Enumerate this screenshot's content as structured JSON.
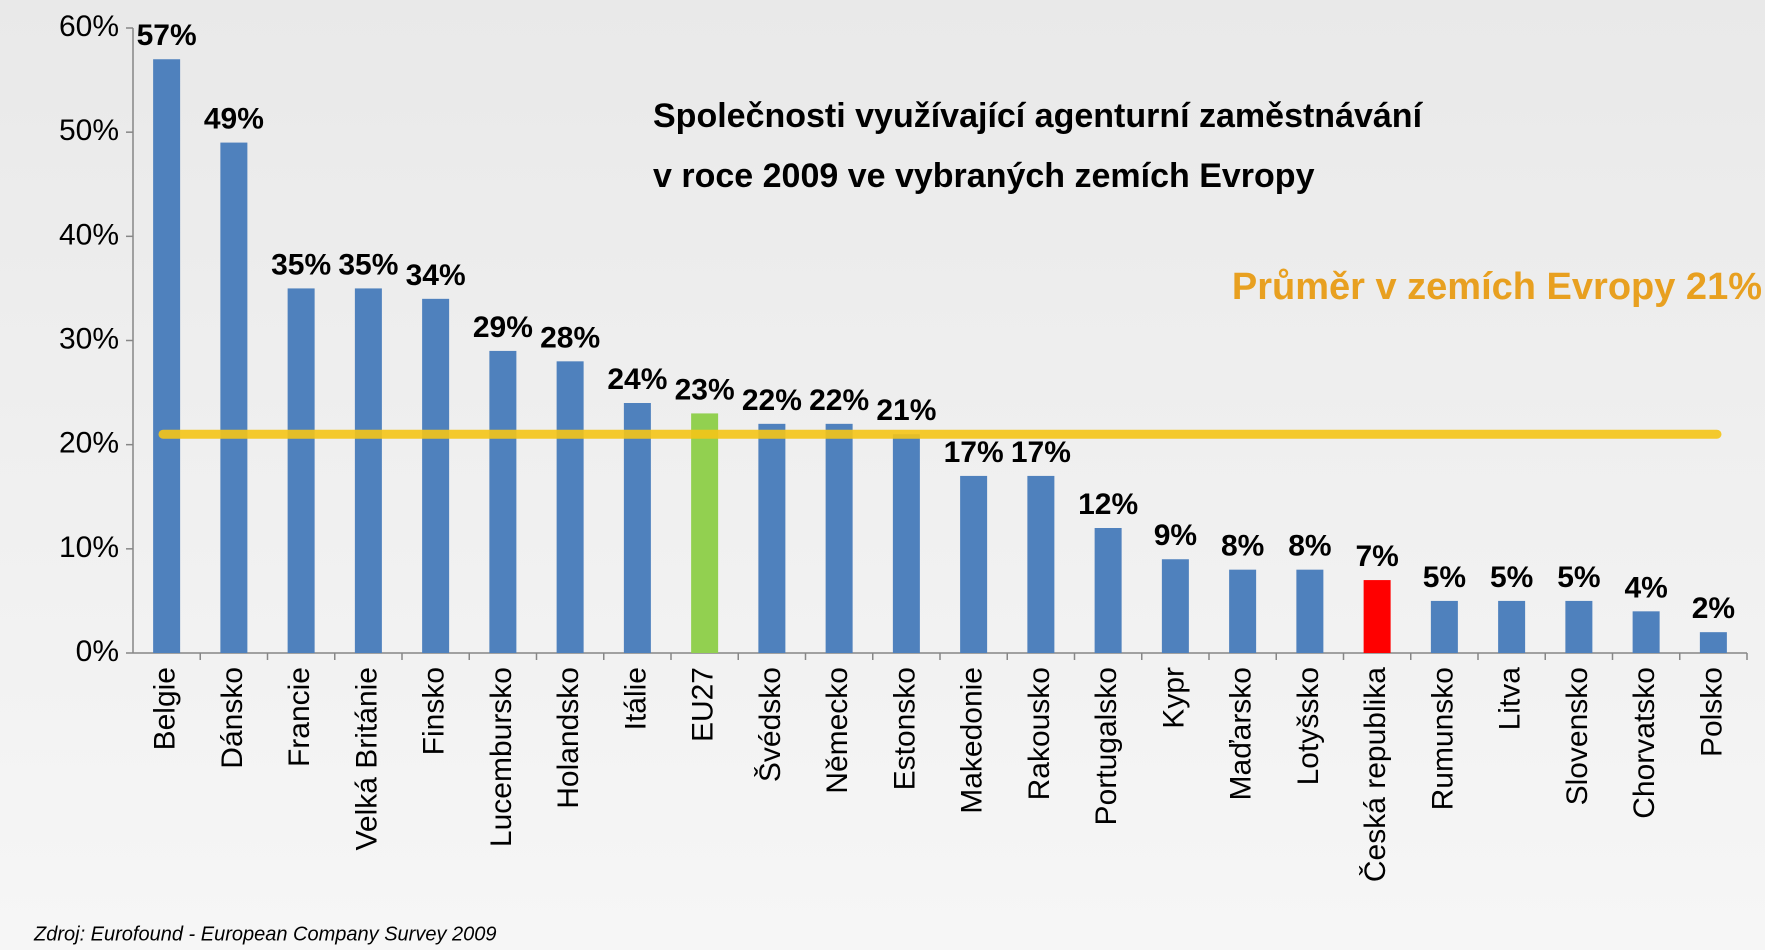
{
  "chart_data": {
    "type": "bar",
    "title": [
      "Společnosti využívající agenturní zaměstnávání",
      "v roce 2009 ve vybraných zemích Evropy"
    ],
    "categories": [
      "Belgie",
      "Dánsko",
      "Francie",
      "Velká Británie",
      "Finsko",
      "Lucembursko",
      "Holandsko",
      "Itálie",
      "EU27",
      "Švédsko",
      "Německo",
      "Estonsko",
      "Makedonie",
      "Rakousko",
      "Portugalsko",
      "Kypr",
      "Maďarsko",
      "Lotyšsko",
      "Česká republika",
      "Rumunsko",
      "Litva",
      "Slovensko",
      "Chorvatsko",
      "Polsko"
    ],
    "values": [
      57,
      49,
      35,
      35,
      34,
      29,
      28,
      24,
      23,
      22,
      22,
      21,
      17,
      17,
      12,
      9,
      8,
      8,
      7,
      5,
      5,
      5,
      4,
      2
    ],
    "value_labels": [
      "57%",
      "49%",
      "35%",
      "35%",
      "34%",
      "29%",
      "28%",
      "24%",
      "23%",
      "22%",
      "22%",
      "21%",
      "17%",
      "17%",
      "12%",
      "9%",
      "8%",
      "8%",
      "7%",
      "5%",
      "5%",
      "5%",
      "4%",
      "2%"
    ],
    "colors": [
      "#4f81bd",
      "#4f81bd",
      "#4f81bd",
      "#4f81bd",
      "#4f81bd",
      "#4f81bd",
      "#4f81bd",
      "#4f81bd",
      "#92d050",
      "#4f81bd",
      "#4f81bd",
      "#4f81bd",
      "#4f81bd",
      "#4f81bd",
      "#4f81bd",
      "#4f81bd",
      "#4f81bd",
      "#4f81bd",
      "#ff0000",
      "#4f81bd",
      "#4f81bd",
      "#4f81bd",
      "#4f81bd",
      "#4f81bd"
    ],
    "ylim": [
      0,
      60
    ],
    "yticks": [
      {
        "value": 0,
        "label": "0%"
      },
      {
        "value": 10,
        "label": "10%"
      },
      {
        "value": 20,
        "label": "20%"
      },
      {
        "value": 30,
        "label": "30%"
      },
      {
        "value": 40,
        "label": "40%"
      },
      {
        "value": 50,
        "label": "50%"
      },
      {
        "value": 60,
        "label": "60%"
      }
    ],
    "average": 21,
    "average_color": "#f5c518",
    "annotation": "Průměr v zemích Evropy 21%",
    "annotation_color": "#e8a020",
    "source": "Zdroj:  Eurofound - European Company Survey 2009"
  }
}
